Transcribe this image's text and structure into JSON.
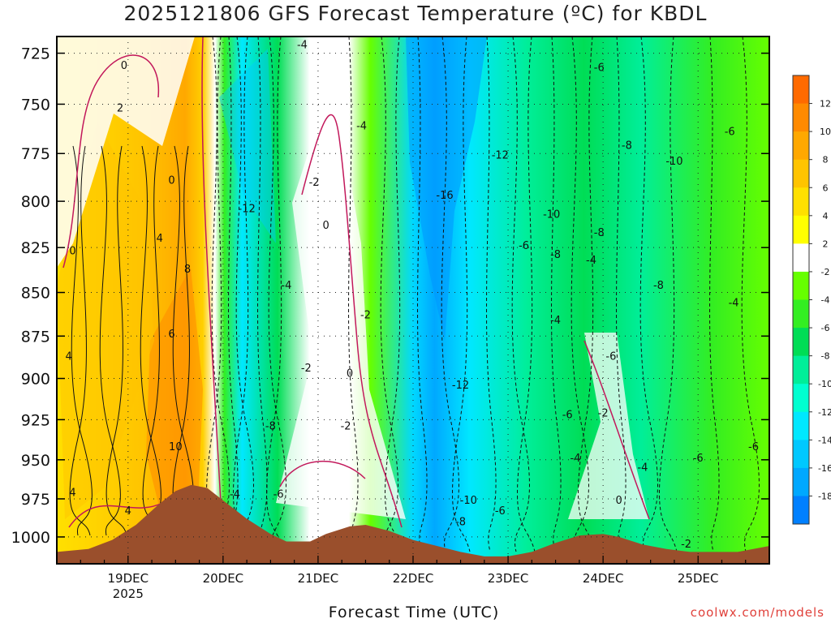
{
  "chart_data": {
    "type": "heatmap",
    "title": "2025121806 GFS Forecast Temperature (ºC) for KBDL",
    "xlabel": "Forecast Time (UTC)",
    "ylabel": "",
    "x_ticks": [
      {
        "label": "19DEC",
        "sub": "2025",
        "hours": 18
      },
      {
        "label": "20DEC",
        "sub": "",
        "hours": 42
      },
      {
        "label": "21DEC",
        "sub": "",
        "hours": 66
      },
      {
        "label": "22DEC",
        "sub": "",
        "hours": 90
      },
      {
        "label": "23DEC",
        "sub": "",
        "hours": 114
      },
      {
        "label": "24DEC",
        "sub": "",
        "hours": 138
      },
      {
        "label": "25DEC",
        "sub": "",
        "hours": 162
      }
    ],
    "xlim_hours": [
      0,
      180
    ],
    "y_ticks": [
      "725",
      "750",
      "775",
      "800",
      "825",
      "850",
      "875",
      "900",
      "925",
      "950",
      "975",
      "1000"
    ],
    "ylim_hpa": [
      1018,
      717
    ],
    "colorbar": {
      "ticks": [
        "12",
        "10",
        "8",
        "6",
        "4",
        "2",
        "-2",
        "-4",
        "-6",
        "-8",
        "-10",
        "-12",
        "-14",
        "-16",
        "-18"
      ],
      "levels": [
        14,
        12,
        10,
        8,
        6,
        4,
        2,
        -2,
        -4,
        -6,
        -8,
        -10,
        -12,
        -14,
        -16,
        -18,
        -20
      ],
      "colors": [
        "#ff6a00",
        "#ff8a00",
        "#ffa800",
        "#ffc400",
        "#ffe000",
        "#ffff00",
        "#ffffff",
        "#66ff00",
        "#33ee22",
        "#00dd55",
        "#00ee99",
        "#00ffd0",
        "#00e8ff",
        "#00c8ff",
        "#00a8ff",
        "#0080ff"
      ]
    },
    "contour_labels": [
      {
        "text": "0",
        "hours": 17,
        "hpa": 731
      },
      {
        "text": "2",
        "hours": 16,
        "hpa": 752
      },
      {
        "text": "0",
        "hours": 29,
        "hpa": 789
      },
      {
        "text": "0",
        "hours": 4,
        "hpa": 827
      },
      {
        "text": "4",
        "hours": 26,
        "hpa": 820
      },
      {
        "text": "8",
        "hours": 33,
        "hpa": 837
      },
      {
        "text": "6",
        "hours": 29,
        "hpa": 874
      },
      {
        "text": "4",
        "hours": 3,
        "hpa": 887
      },
      {
        "text": "10",
        "hours": 30,
        "hpa": 942
      },
      {
        "text": "4",
        "hours": 4,
        "hpa": 971
      },
      {
        "text": "4",
        "hours": 18,
        "hpa": 983
      },
      {
        "text": "-4",
        "hours": 62,
        "hpa": 721
      },
      {
        "text": "-12",
        "hours": 48,
        "hpa": 804
      },
      {
        "text": "-2",
        "hours": 65,
        "hpa": 790
      },
      {
        "text": "0",
        "hours": 68,
        "hpa": 813
      },
      {
        "text": "-4",
        "hours": 58,
        "hpa": 846
      },
      {
        "text": "-4",
        "hours": 77,
        "hpa": 761
      },
      {
        "text": "-2",
        "hours": 78,
        "hpa": 863
      },
      {
        "text": "-2",
        "hours": 63,
        "hpa": 894
      },
      {
        "text": "0",
        "hours": 74,
        "hpa": 897
      },
      {
        "text": "-2",
        "hours": 73,
        "hpa": 929
      },
      {
        "text": "-8",
        "hours": 54,
        "hpa": 929
      },
      {
        "text": "-4",
        "hours": 45,
        "hpa": 972
      },
      {
        "text": "-6",
        "hours": 56,
        "hpa": 972
      },
      {
        "text": "-16",
        "hours": 98,
        "hpa": 797
      },
      {
        "text": "-12",
        "hours": 112,
        "hpa": 776
      },
      {
        "text": "-10",
        "hours": 125,
        "hpa": 807
      },
      {
        "text": "-6",
        "hours": 118,
        "hpa": 824
      },
      {
        "text": "-8",
        "hours": 126,
        "hpa": 829
      },
      {
        "text": "-12",
        "hours": 102,
        "hpa": 904
      },
      {
        "text": "-10",
        "hours": 104,
        "hpa": 976
      },
      {
        "text": "-8",
        "hours": 102,
        "hpa": 990
      },
      {
        "text": "-6",
        "hours": 112,
        "hpa": 983
      },
      {
        "text": "-4",
        "hours": 126,
        "hpa": 866
      },
      {
        "text": "-6",
        "hours": 129,
        "hpa": 922
      },
      {
        "text": "-6",
        "hours": 137,
        "hpa": 732
      },
      {
        "text": "-8",
        "hours": 144,
        "hpa": 771
      },
      {
        "text": "-10",
        "hours": 156,
        "hpa": 779
      },
      {
        "text": "-6",
        "hours": 170,
        "hpa": 764
      },
      {
        "text": "-8",
        "hours": 137,
        "hpa": 817
      },
      {
        "text": "-4",
        "hours": 135,
        "hpa": 832
      },
      {
        "text": "-8",
        "hours": 152,
        "hpa": 846
      },
      {
        "text": "-6",
        "hours": 140,
        "hpa": 887
      },
      {
        "text": "-4",
        "hours": 171,
        "hpa": 856
      },
      {
        "text": "-2",
        "hours": 138,
        "hpa": 921
      },
      {
        "text": "-4",
        "hours": 131,
        "hpa": 949
      },
      {
        "text": "-4",
        "hours": 148,
        "hpa": 955
      },
      {
        "text": "-6",
        "hours": 162,
        "hpa": 949
      },
      {
        "text": "-6",
        "hours": 176,
        "hpa": 942
      },
      {
        "text": "0",
        "hours": 142,
        "hpa": 976
      },
      {
        "text": "-2",
        "hours": 159,
        "hpa": 1005
      }
    ],
    "terrain": {
      "color": "#9a4f2c",
      "surface_hpa": [
        [
          0,
          1010
        ],
        [
          8,
          1008
        ],
        [
          14,
          1002
        ],
        [
          20,
          992
        ],
        [
          26,
          978
        ],
        [
          30,
          970
        ],
        [
          34,
          966
        ],
        [
          38,
          968
        ],
        [
          42,
          976
        ],
        [
          48,
          988
        ],
        [
          54,
          998
        ],
        [
          58,
          1003
        ],
        [
          64,
          1003
        ],
        [
          68,
          998
        ],
        [
          74,
          993
        ],
        [
          78,
          992
        ],
        [
          84,
          996
        ],
        [
          90,
          1002
        ],
        [
          96,
          1006
        ],
        [
          102,
          1010
        ],
        [
          108,
          1013
        ],
        [
          114,
          1013
        ],
        [
          120,
          1010
        ],
        [
          126,
          1004
        ],
        [
          132,
          999
        ],
        [
          138,
          998
        ],
        [
          142,
          1000
        ],
        [
          148,
          1005
        ],
        [
          154,
          1008
        ],
        [
          160,
          1010
        ],
        [
          166,
          1010
        ],
        [
          172,
          1010
        ],
        [
          178,
          1007
        ],
        [
          180,
          1006
        ]
      ]
    }
  },
  "source": "coolwx.com/models"
}
